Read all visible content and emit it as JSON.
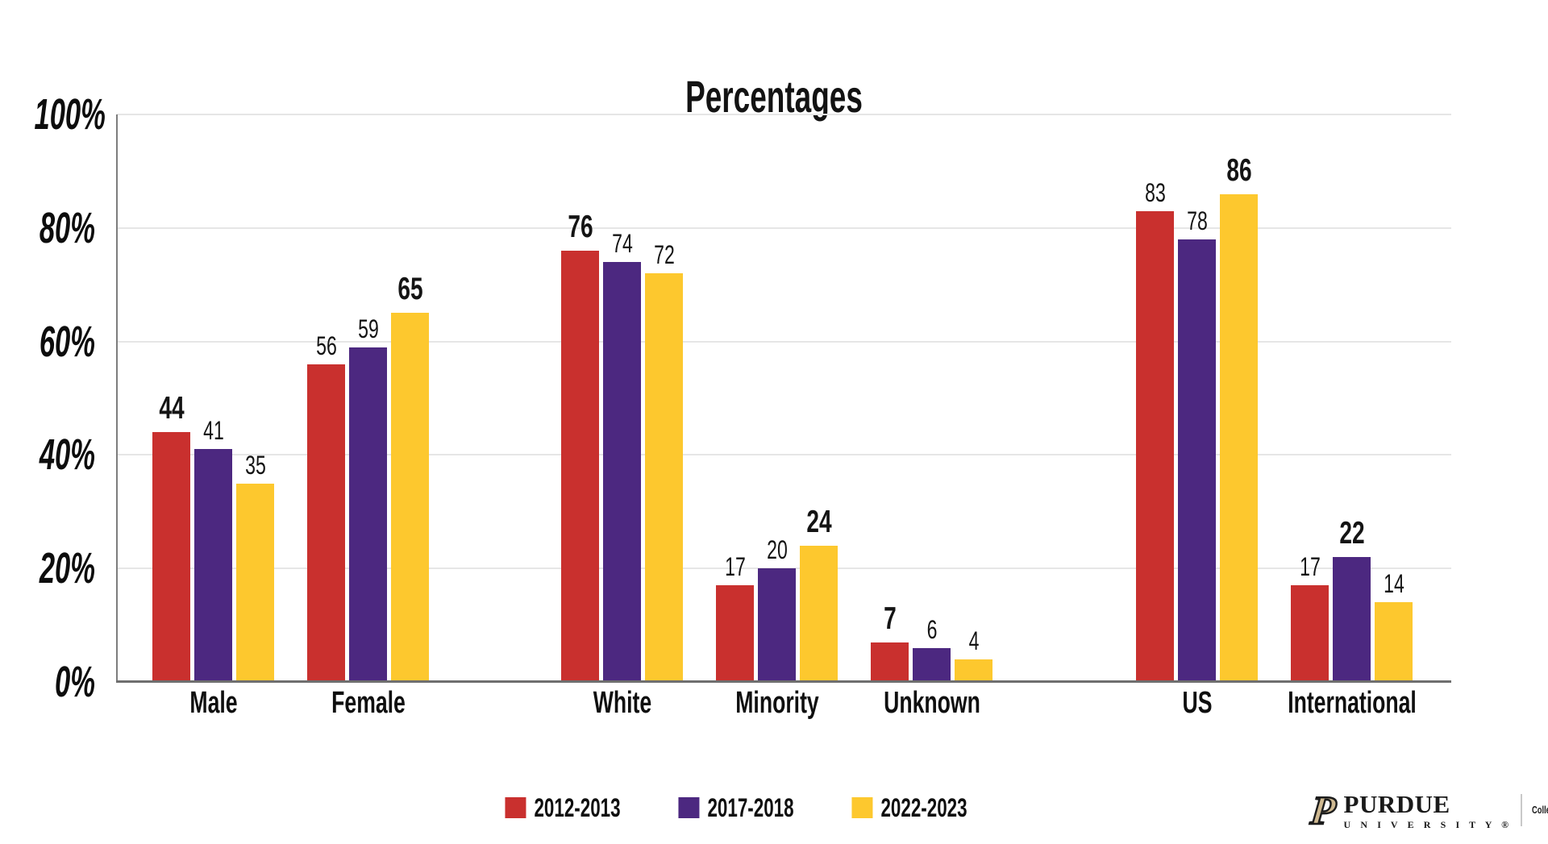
{
  "title": "Percentages",
  "y_axis": {
    "tick_labels": [
      "100%",
      "80%",
      "60%",
      "40%",
      "20%",
      "0%"
    ],
    "tick_values": [
      100,
      80,
      60,
      40,
      20,
      0
    ]
  },
  "chart_data": {
    "type": "bar",
    "title": "Percentages",
    "categories": [
      "Male",
      "Female",
      "White",
      "Minority",
      "Unknown",
      "US",
      "International"
    ],
    "series": [
      {
        "name": "2012-2013",
        "color": "#c9302e",
        "values": [
          44,
          56,
          76,
          17,
          7,
          83,
          17
        ]
      },
      {
        "name": "2017-2018",
        "color": "#4c2880",
        "values": [
          41,
          59,
          74,
          20,
          6,
          78,
          22
        ]
      },
      {
        "name": "2022-2023",
        "color": "#fdc82e",
        "values": [
          35,
          65,
          72,
          24,
          4,
          86,
          14
        ]
      }
    ],
    "ylim": [
      0,
      100
    ],
    "ylabel": "",
    "xlabel": "",
    "grid": true,
    "legend_position": "bottom",
    "value_labels": "all bars labeled; group maximum shown bold and larger"
  },
  "legend": {
    "items": [
      "2012-2013",
      "2017-2018",
      "2022-2023"
    ]
  },
  "branding": {
    "p_mark": "P",
    "wordmark": "PURDUE",
    "subline": "U N I V E R S I T Y ®",
    "division": "College of Agriculture"
  },
  "colors": {
    "series_red": "#c9302e",
    "series_purple": "#4c2880",
    "series_yellow": "#fdc82e",
    "gridline": "#e6e6e6",
    "axis": "#6f6f6f",
    "purdue_gold": "#cfb991"
  }
}
